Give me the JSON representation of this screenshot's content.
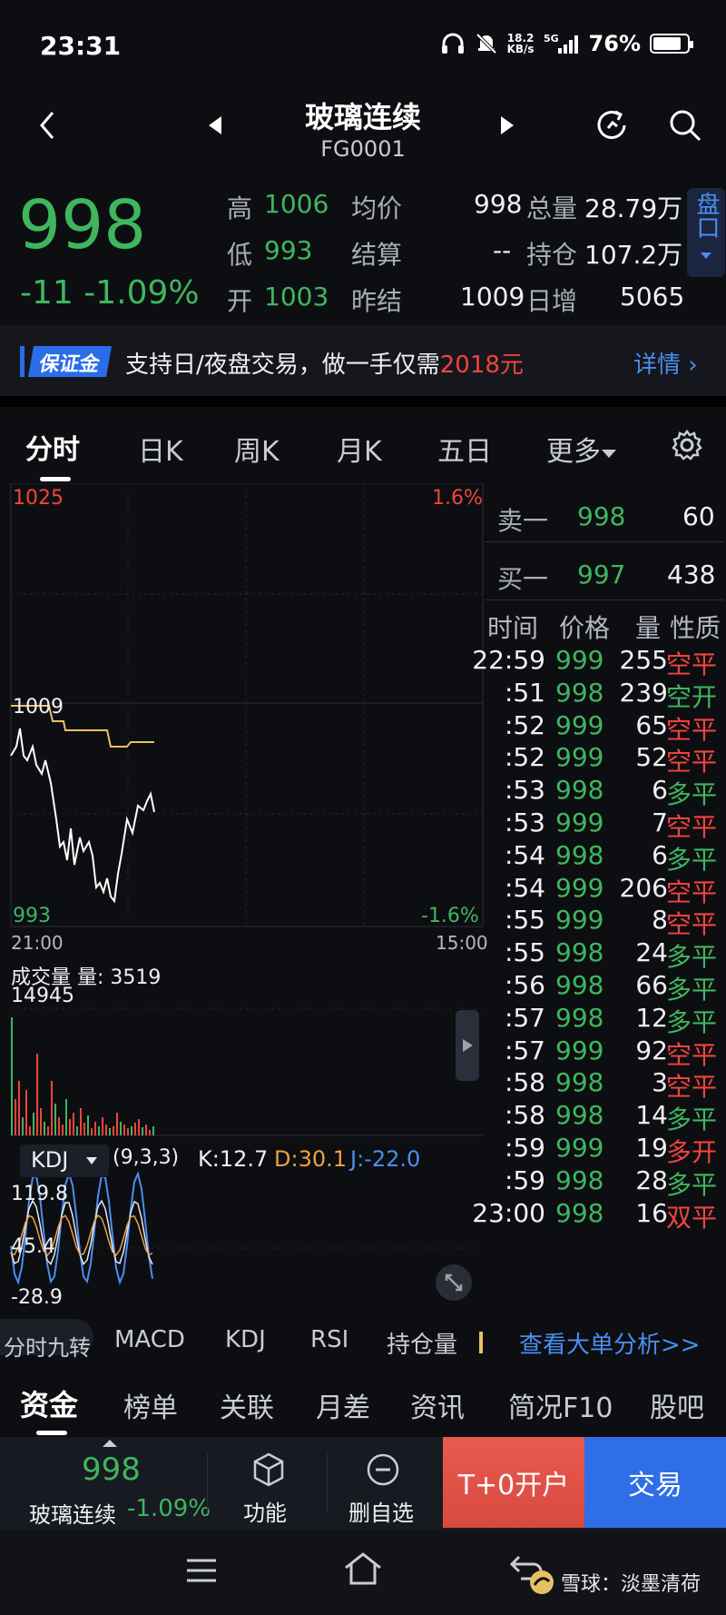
{
  "status": {
    "time": "23:31",
    "speed_top": "18.2",
    "speed_bottom": "KB/s",
    "network": "5G",
    "battery": "76%",
    "battery_level": 0.76
  },
  "header": {
    "title": "玻璃连续",
    "code": "FG0001"
  },
  "quote": {
    "price": "998",
    "change": "-11 -1.09%",
    "high_label": "高",
    "high": "1006",
    "low_label": "低",
    "low": "993",
    "open_label": "开",
    "open": "1003",
    "avg_label": "均价",
    "avg": "998",
    "settle_label": "结算",
    "settle": "--",
    "prev_settle_label": "昨结",
    "prev_settle": "1009",
    "volume_label": "总量",
    "volume": "28.79万",
    "oi_label": "持仓",
    "oi": "107.2万",
    "daily_inc_label": "日增",
    "daily_inc": "5065",
    "pankou": "盘口"
  },
  "banner": {
    "badge": "保证金",
    "text": "支持日/夜盘交易，做一手仅需",
    "amount": "2018元",
    "link": "详情"
  },
  "tabs": [
    "分时",
    "日K",
    "周K",
    "月K",
    "五日",
    "更多"
  ],
  "chart": {
    "price_top": "1025",
    "pct_top": "1.6%",
    "price_mid": "1009",
    "price_bot": "993",
    "pct_bot": "-1.6%",
    "time_start": "21:00",
    "time_end": "15:00",
    "volume_label": "成交量 量: 3519",
    "volume_max": "14945",
    "kdj_selector": "KDJ",
    "kdj_params": "(9,3,3)",
    "kdj_k": "K:12.7",
    "kdj_d": "D:30.1",
    "kdj_j": "J:-22.0",
    "kdj_high": "119.8",
    "kdj_mid": "45.4",
    "kdj_low": "-28.9"
  },
  "orderbook": {
    "sell_label": "卖一",
    "sell_price": "998",
    "sell_qty": "60",
    "buy_label": "买一",
    "buy_price": "997",
    "buy_qty": "438",
    "col_time": "时间",
    "col_price": "价格",
    "col_qty": "量",
    "col_type": "性质"
  },
  "ticks": [
    {
      "time": "22:59",
      "price": "999",
      "qty": "255",
      "type": "空平",
      "tc": "red"
    },
    {
      "time": ":51",
      "price": "998",
      "qty": "239",
      "type": "空开",
      "tc": "green"
    },
    {
      "time": ":52",
      "price": "999",
      "qty": "65",
      "type": "空平",
      "tc": "red"
    },
    {
      "time": ":52",
      "price": "999",
      "qty": "52",
      "type": "空平",
      "tc": "red"
    },
    {
      "time": ":53",
      "price": "998",
      "qty": "6",
      "type": "多平",
      "tc": "green"
    },
    {
      "time": ":53",
      "price": "999",
      "qty": "7",
      "type": "空平",
      "tc": "red"
    },
    {
      "time": ":54",
      "price": "998",
      "qty": "6",
      "type": "多平",
      "tc": "green"
    },
    {
      "time": ":54",
      "price": "999",
      "qty": "206",
      "type": "空平",
      "tc": "red"
    },
    {
      "time": ":55",
      "price": "999",
      "qty": "8",
      "type": "空平",
      "tc": "red"
    },
    {
      "time": ":55",
      "price": "998",
      "qty": "24",
      "type": "多平",
      "tc": "green"
    },
    {
      "time": ":56",
      "price": "998",
      "qty": "66",
      "type": "多平",
      "tc": "green"
    },
    {
      "time": ":57",
      "price": "998",
      "qty": "12",
      "type": "多平",
      "tc": "green"
    },
    {
      "time": ":57",
      "price": "999",
      "qty": "92",
      "type": "空平",
      "tc": "red"
    },
    {
      "time": ":58",
      "price": "998",
      "qty": "3",
      "type": "空平",
      "tc": "red"
    },
    {
      "time": ":58",
      "price": "998",
      "qty": "14",
      "type": "多平",
      "tc": "green"
    },
    {
      "time": ":59",
      "price": "999",
      "qty": "19",
      "type": "多开",
      "tc": "red"
    },
    {
      "time": ":59",
      "price": "998",
      "qty": "28",
      "type": "多平",
      "tc": "green"
    },
    {
      "time": "23:00",
      "price": "998",
      "qty": "16",
      "type": "双平",
      "tc": "red"
    }
  ],
  "indicators": [
    "分时九转",
    "MACD",
    "KDJ",
    "RSI",
    "持仓量"
  ],
  "big_order_link": "查看大单分析>>",
  "bottom_tabs": [
    "资金",
    "榜单",
    "关联",
    "月差",
    "资讯",
    "简况F10",
    "股吧"
  ],
  "bottom_bar": {
    "price": "998",
    "name": "玻璃连续",
    "pct": "-1.09%",
    "func_label": "功能",
    "remove_label": "删自选",
    "open_account": "T+0开户",
    "trade": "交易"
  },
  "watermark": "雪球：淡墨清荷",
  "colors": {
    "up": "#f2443c",
    "down": "#3fb65e",
    "accent": "#4a8ef0",
    "avg_line": "#e8c064"
  }
}
